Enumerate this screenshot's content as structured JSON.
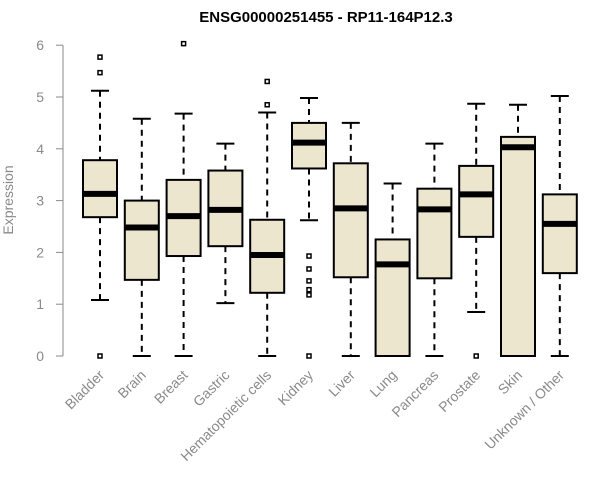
{
  "chart_data": {
    "type": "boxplot",
    "title": "ENSG00000251455 - RP11-164P12.3",
    "xlabel": "",
    "ylabel": "Expression",
    "ylim": [
      0,
      6.2
    ],
    "yticks": [
      0,
      1,
      2,
      3,
      4,
      5,
      6
    ],
    "box_fill": "#ede6cf",
    "categories": [
      "Bladder",
      "Brain",
      "Breast",
      "Gastric",
      "Hematopoietic cells",
      "Kidney",
      "Liver",
      "Lung",
      "Pancreas",
      "Prostate",
      "Skin",
      "Unknown / Other"
    ],
    "boxes": [
      {
        "category": "Bladder",
        "whisker_low": 1.08,
        "q1": 2.68,
        "median": 3.13,
        "q3": 3.78,
        "whisker_high": 5.12,
        "outliers": [
          5.47,
          5.77,
          0.0
        ]
      },
      {
        "category": "Brain",
        "whisker_low": 0.0,
        "q1": 1.47,
        "median": 2.48,
        "q3": 3.0,
        "whisker_high": 4.58,
        "outliers": []
      },
      {
        "category": "Breast",
        "whisker_low": 0.0,
        "q1": 1.93,
        "median": 2.7,
        "q3": 3.4,
        "whisker_high": 4.68,
        "outliers": [
          6.03
        ]
      },
      {
        "category": "Gastric",
        "whisker_low": 1.02,
        "q1": 2.12,
        "median": 2.82,
        "q3": 3.58,
        "whisker_high": 4.1,
        "outliers": []
      },
      {
        "category": "Hematopoietic cells",
        "whisker_low": 0.0,
        "q1": 1.22,
        "median": 1.95,
        "q3": 2.63,
        "whisker_high": 4.7,
        "outliers": [
          4.85,
          5.3
        ]
      },
      {
        "category": "Kidney",
        "whisker_low": 2.62,
        "q1": 3.62,
        "median": 4.12,
        "q3": 4.5,
        "whisker_high": 4.98,
        "outliers": [
          1.93,
          1.68,
          1.45,
          1.28,
          1.18,
          0.0
        ]
      },
      {
        "category": "Liver",
        "whisker_low": 0.0,
        "q1": 1.52,
        "median": 2.85,
        "q3": 3.72,
        "whisker_high": 4.5,
        "outliers": []
      },
      {
        "category": "Lung",
        "whisker_low": 0.0,
        "q1": 0.0,
        "median": 1.77,
        "q3": 2.25,
        "whisker_high": 3.33,
        "outliers": []
      },
      {
        "category": "Pancreas",
        "whisker_low": 0.0,
        "q1": 1.5,
        "median": 2.83,
        "q3": 3.23,
        "whisker_high": 4.1,
        "outliers": []
      },
      {
        "category": "Prostate",
        "whisker_low": 0.85,
        "q1": 2.3,
        "median": 3.12,
        "q3": 3.67,
        "whisker_high": 4.87,
        "outliers": [
          0.0
        ]
      },
      {
        "category": "Skin",
        "whisker_low": 0.0,
        "q1": 0.0,
        "median": 4.03,
        "q3": 4.23,
        "whisker_high": 4.85,
        "outliers": []
      },
      {
        "category": "Unknown / Other",
        "whisker_low": 0.0,
        "q1": 1.6,
        "median": 2.55,
        "q3": 3.12,
        "whisker_high": 5.02,
        "outliers": []
      }
    ]
  }
}
